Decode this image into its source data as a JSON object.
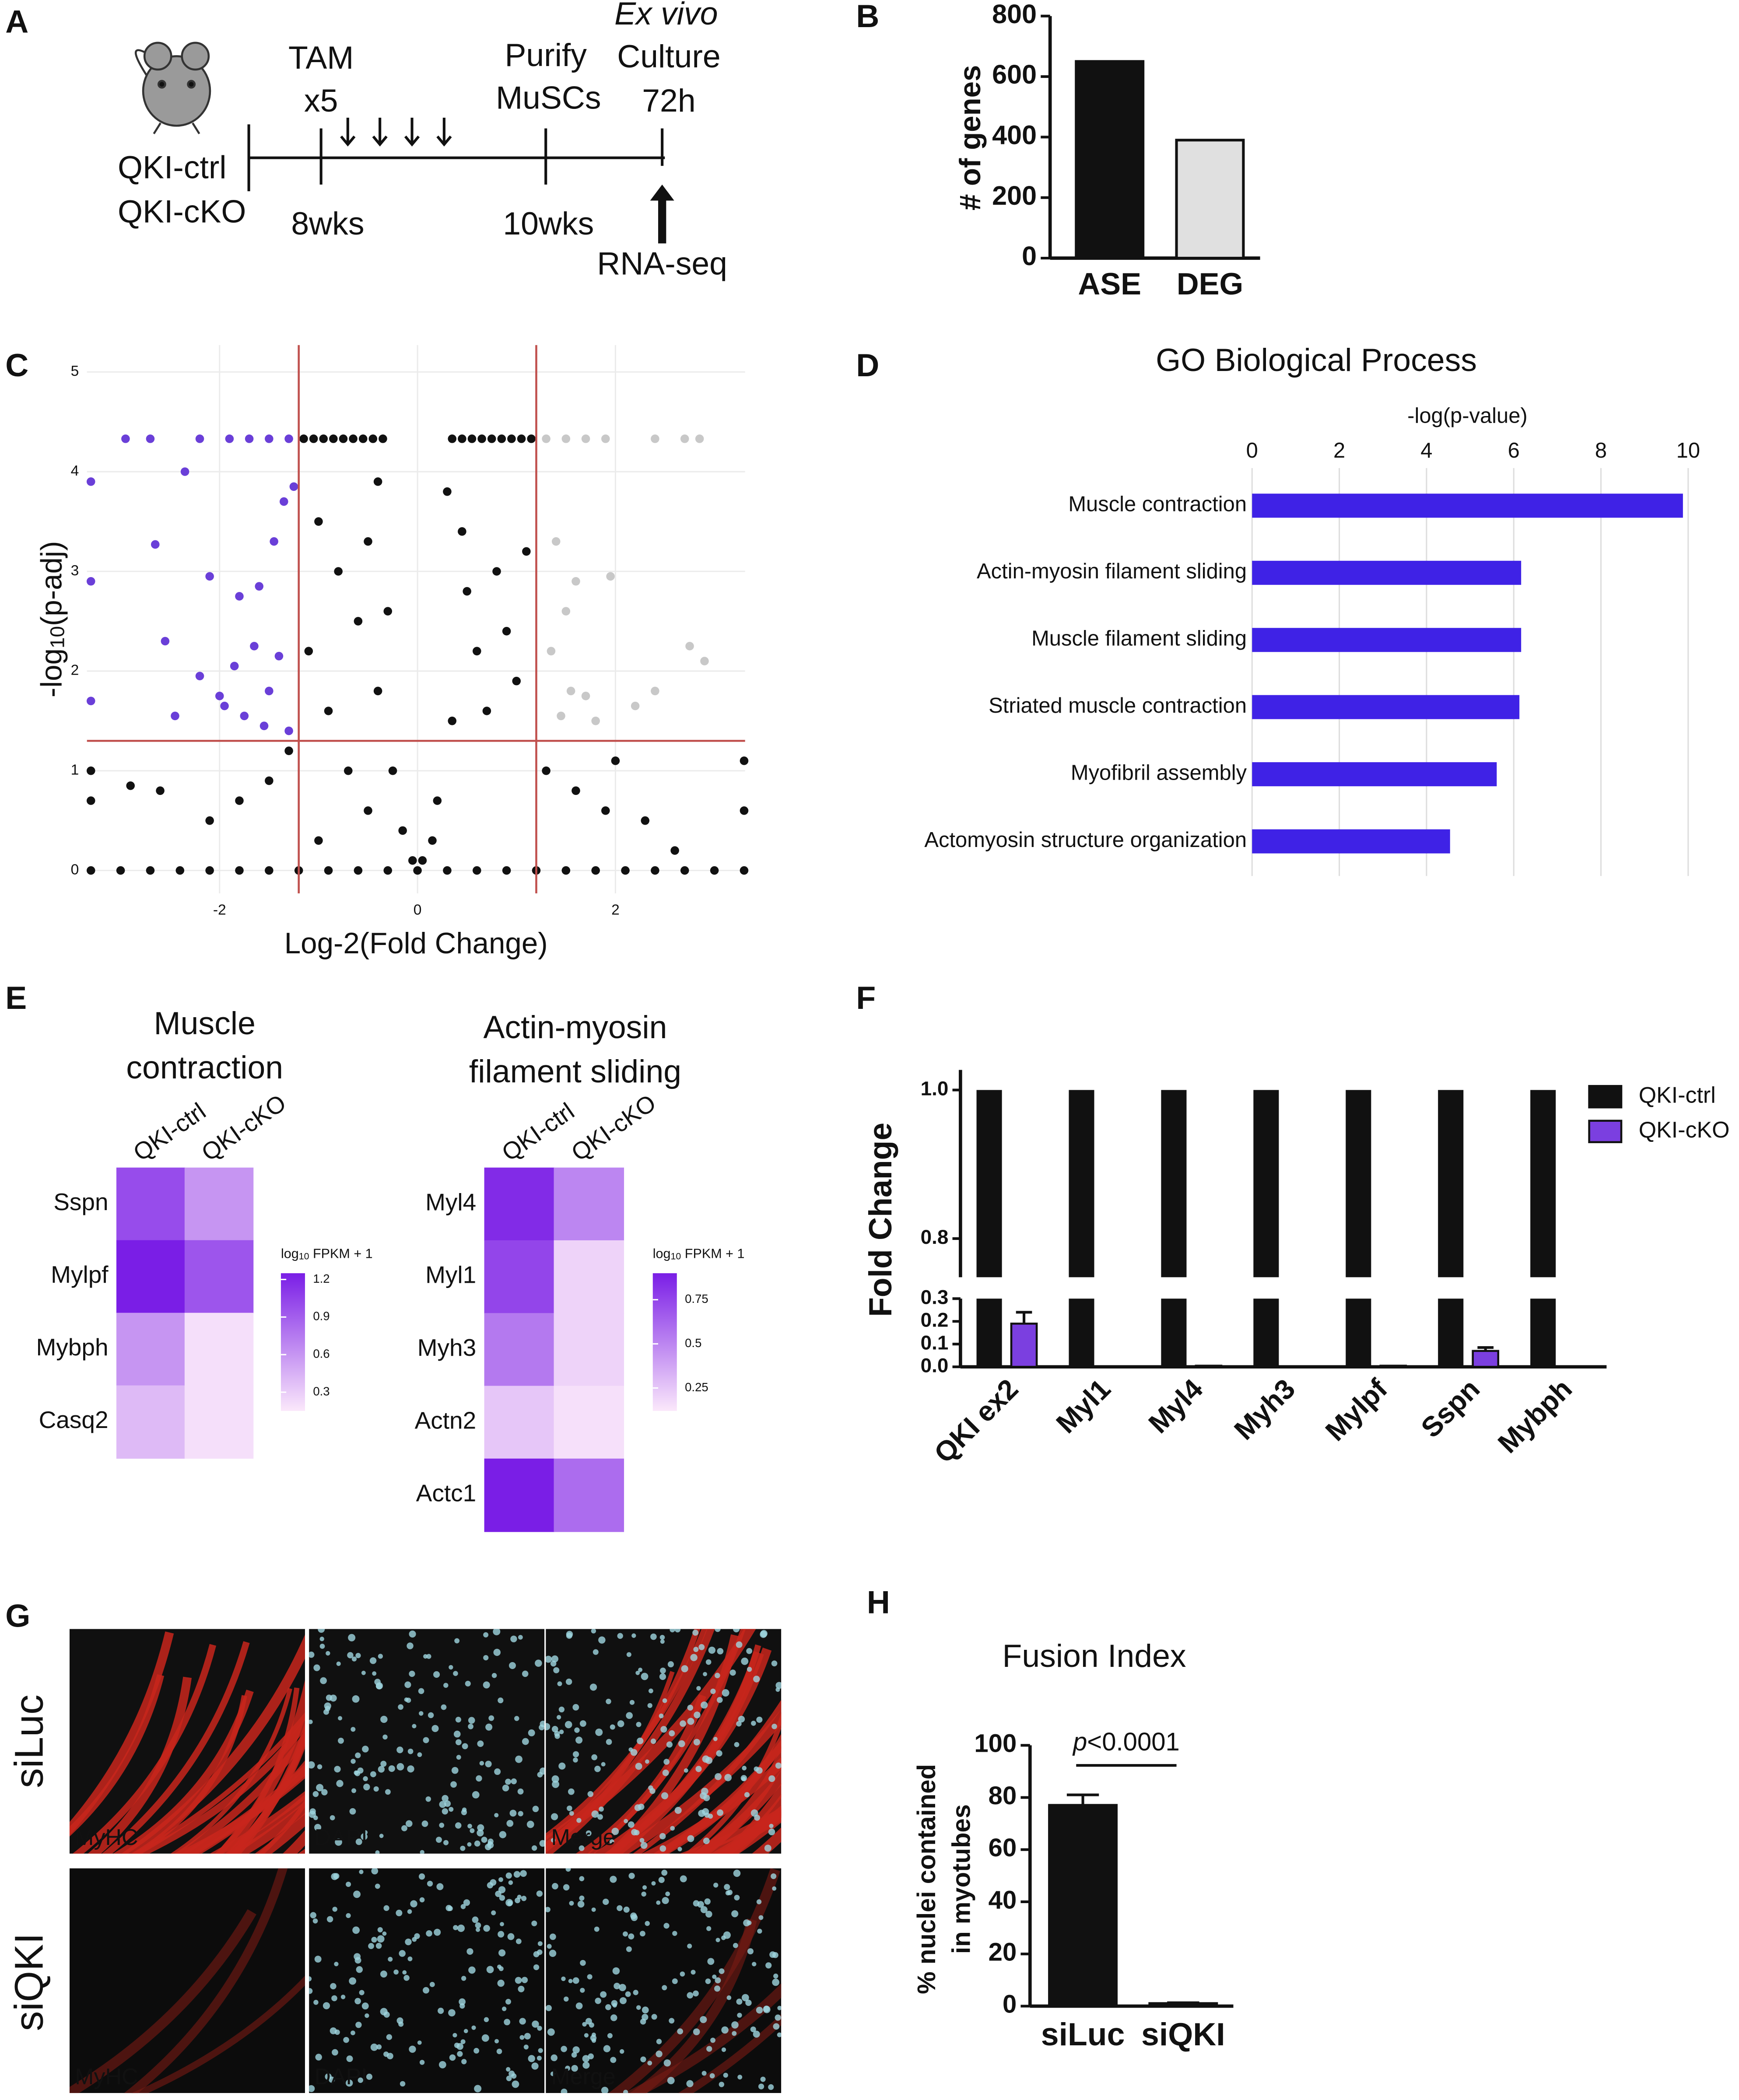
{
  "panel_letters": [
    "A",
    "B",
    "C",
    "D",
    "E",
    "F",
    "G",
    "H"
  ],
  "panel_a": {
    "groups": [
      "QKI-ctrl",
      "QKI-cKO"
    ],
    "treatment": "TAM",
    "treatment_count": "x5",
    "purify": [
      "Purify",
      "MuSCs"
    ],
    "culture": [
      "Ex vivo",
      "Culture",
      "72h"
    ],
    "start_age": "8wks",
    "end_age": "10wks",
    "assay": "RNA-seq"
  },
  "chart_data": [
    {
      "type": "bar",
      "categories": [
        "ASE",
        "DEG"
      ],
      "values": [
        650,
        390
      ],
      "colors": [
        "#111111",
        "#e0e0e0"
      ],
      "ylabel": "# of genes",
      "ylim": [
        0,
        800
      ],
      "yticks": [
        0,
        200,
        400,
        600,
        800
      ]
    },
    {
      "type": "scatter",
      "xlabel": "Log-2(Fold Change)",
      "ylabel": [
        "-log",
        "10",
        "(p-adj)"
      ],
      "xlim": [
        -3.34,
        3.31
      ],
      "ylim": [
        -0.23,
        5.27
      ],
      "xticks": [
        -2,
        0,
        2
      ],
      "yticks": [
        0,
        1,
        2,
        3,
        4,
        5
      ],
      "grid": true,
      "vlines": [
        -1.2,
        1.2
      ],
      "hline": 1.3,
      "threshold_color": "#c0504d",
      "series": [
        {
          "color": "#6a3fd8",
          "x": [
            -2.95,
            -2.7,
            -2.2,
            -1.9,
            -1.7,
            -1.5,
            -1.3,
            -2.35,
            -2.65,
            -2.1,
            -1.8,
            -1.6,
            -1.45,
            -1.35,
            -1.25,
            -2.55,
            -2.2,
            -2.0,
            -1.85,
            -1.65,
            -1.5,
            -1.4,
            -2.45,
            -1.95,
            -1.75,
            -1.3,
            -1.55,
            -3.3,
            -3.3,
            -3.3
          ],
          "y": [
            4.33,
            4.33,
            4.33,
            4.33,
            4.33,
            4.33,
            4.33,
            4.0,
            3.27,
            2.95,
            2.75,
            2.85,
            3.3,
            3.7,
            3.85,
            2.3,
            1.95,
            1.75,
            2.05,
            2.25,
            1.8,
            2.15,
            1.55,
            1.65,
            1.55,
            1.4,
            1.45,
            3.9,
            2.9,
            1.7
          ]
        },
        {
          "color": "#c8c8c8",
          "x": [
            1.3,
            1.5,
            1.7,
            1.9,
            2.4,
            2.7,
            2.85,
            1.4,
            1.6,
            1.95,
            1.5,
            1.35,
            1.7,
            2.2,
            2.9,
            2.75,
            1.45,
            1.8,
            1.55,
            2.4
          ],
          "y": [
            4.33,
            4.33,
            4.33,
            4.33,
            4.33,
            4.33,
            4.33,
            3.3,
            2.9,
            2.95,
            2.6,
            2.2,
            1.75,
            1.65,
            2.1,
            2.25,
            1.55,
            1.5,
            1.8,
            1.8
          ]
        },
        {
          "color": "#111111",
          "x": [
            -1.15,
            -1.05,
            -0.95,
            -0.85,
            -0.75,
            -0.65,
            -0.55,
            -0.45,
            -0.35,
            0.35,
            0.45,
            0.55,
            0.65,
            0.75,
            0.85,
            0.95,
            1.05,
            1.15,
            -3.3,
            -3.0,
            -2.7,
            -2.4,
            -2.1,
            -1.8,
            -1.5,
            -1.2,
            -0.9,
            -0.6,
            -0.3,
            0,
            0.3,
            0.6,
            0.9,
            1.2,
            1.5,
            1.8,
            2.1,
            2.4,
            2.7,
            3.0,
            3.3,
            -1.0,
            -0.8,
            -0.6,
            -0.4,
            -0.25,
            -0.15,
            -1.1,
            -0.9,
            -0.7,
            -0.5,
            -1.5,
            -1.8,
            -2.1,
            -2.6,
            -2.9,
            -1.3,
            -1.0,
            -0.4,
            -0.5,
            -0.3,
            0.3,
            0.45,
            0.5,
            0.6,
            0.7,
            0.35,
            0.2,
            0.15,
            0.8,
            0.9,
            1.0,
            1.1,
            1.3,
            1.6,
            1.9,
            2.3,
            2.6,
            2.0,
            -0.05,
            0.05,
            -3.3,
            3.3,
            -3.3,
            3.3
          ],
          "y": [
            4.33,
            4.33,
            4.33,
            4.33,
            4.33,
            4.33,
            4.33,
            4.33,
            4.33,
            4.33,
            4.33,
            4.33,
            4.33,
            4.33,
            4.33,
            4.33,
            4.33,
            4.33,
            0,
            0,
            0,
            0,
            0,
            0,
            0,
            0,
            0,
            0,
            0,
            0,
            0,
            0,
            0,
            0,
            0,
            0,
            0,
            0,
            0,
            0,
            0,
            3.5,
            3.0,
            2.5,
            1.8,
            1.0,
            0.4,
            2.2,
            1.6,
            1.0,
            0.6,
            0.9,
            0.7,
            0.5,
            0.8,
            0.85,
            1.2,
            0.3,
            3.9,
            3.3,
            2.6,
            3.8,
            3.4,
            2.8,
            2.2,
            1.6,
            1.5,
            0.7,
            0.3,
            3.0,
            2.4,
            1.9,
            3.2,
            1.0,
            0.8,
            0.6,
            0.5,
            0.2,
            1.1,
            0.1,
            0.1,
            1.0,
            1.1,
            0.7,
            0.6
          ]
        }
      ]
    },
    {
      "type": "hbar",
      "title": "GO Biological Process",
      "xlabel": "-log(p-value)",
      "categories": [
        "Muscle contraction",
        "Actin-myosin filament sliding",
        "Muscle filament sliding",
        "Striated muscle contraction",
        "Myofibril assembly",
        "Actomyosin structure organization"
      ],
      "values": [
        9.88,
        6.17,
        6.17,
        6.13,
        5.61,
        4.54
      ],
      "color": "#3f22e6",
      "xlim": [
        0,
        10
      ],
      "xticks": [
        0,
        2,
        4,
        6,
        8,
        10
      ],
      "grid": true
    },
    {
      "type": "heatmap",
      "title": [
        "Muscle",
        "contraction"
      ],
      "columns": [
        "QKI-ctrl",
        "QKI-cKO"
      ],
      "rows": [
        "Sspn",
        "Mylpf",
        "Mybph",
        "Casq2"
      ],
      "values": [
        [
          1.0,
          0.6
        ],
        [
          1.25,
          0.95
        ],
        [
          0.6,
          0.2
        ],
        [
          0.4,
          0.2
        ]
      ],
      "colorbar_label": [
        "log",
        "10",
        " FPKM + 1"
      ],
      "clim": [
        0.15,
        1.25
      ],
      "cticks": [
        0.3,
        0.6,
        0.9,
        1.2
      ],
      "colors": [
        "#fbe8fb",
        "#7a1ee6"
      ]
    },
    {
      "type": "heatmap",
      "title": [
        "Actin-myosin",
        "filament sliding"
      ],
      "columns": [
        "QKI-ctrl",
        "QKI-cKO"
      ],
      "rows": [
        "Myl4",
        "Myl1",
        "Myh3",
        "Actn2",
        "Actc1"
      ],
      "values": [
        [
          0.85,
          0.5
        ],
        [
          0.75,
          0.2
        ],
        [
          0.55,
          0.2
        ],
        [
          0.25,
          0.15
        ],
        [
          0.9,
          0.6
        ]
      ],
      "colorbar_label": [
        "log",
        "10",
        " FPKM + 1"
      ],
      "clim": [
        0.12,
        0.9
      ],
      "cticks": [
        0.25,
        0.5,
        0.75
      ],
      "colors": [
        "#fbe8fb",
        "#7a1ee6"
      ]
    },
    {
      "type": "broken_bar",
      "ylabel": "Fold Change",
      "categories": [
        "QKI ex2",
        "Myl1",
        "Myl4",
        "Myh3",
        "Mylpf",
        "Sspn",
        "Mybph"
      ],
      "series": [
        {
          "name": "QKI-ctrl",
          "color": "#111111",
          "values": [
            1,
            1,
            1,
            1,
            1,
            1,
            1
          ]
        },
        {
          "name": "QKI-cKO",
          "color": "#7b3fe0",
          "values": [
            0.19,
            0,
            0.005,
            0,
            0.005,
            0.07,
            0
          ],
          "errors": [
            0.05,
            0,
            0,
            0,
            0,
            0.015,
            0
          ]
        }
      ],
      "ylim": [
        0,
        0.3
      ],
      "yticks": [
        {
          "value": 0,
          "label": "0.0"
        },
        0.1,
        0.2,
        0.3
      ],
      "ylim_upper": [
        0.748,
        1.027
      ],
      "yticks_upper": [
        0.8,
        {
          "value": 1,
          "label": "1.0"
        }
      ],
      "legend": "upper right"
    },
    {
      "type": "bar",
      "title": "Fusion Index",
      "ylabel": [
        "% nuclei contained",
        "in myotubes"
      ],
      "categories": [
        "siLuc",
        "siQKI"
      ],
      "values": [
        77,
        1
      ],
      "errors": [
        4,
        0.3
      ],
      "colors": [
        "#111111",
        "#111111"
      ],
      "ylim": [
        0,
        100
      ],
      "yticks": [
        0,
        20,
        40,
        60,
        80,
        100
      ],
      "annotation": [
        "p",
        "<0.0001"
      ]
    }
  ],
  "panel_g": {
    "rows": [
      "siLuc",
      "siQKI"
    ],
    "channels": [
      "MyHC",
      "DAPI",
      "Merge"
    ]
  }
}
